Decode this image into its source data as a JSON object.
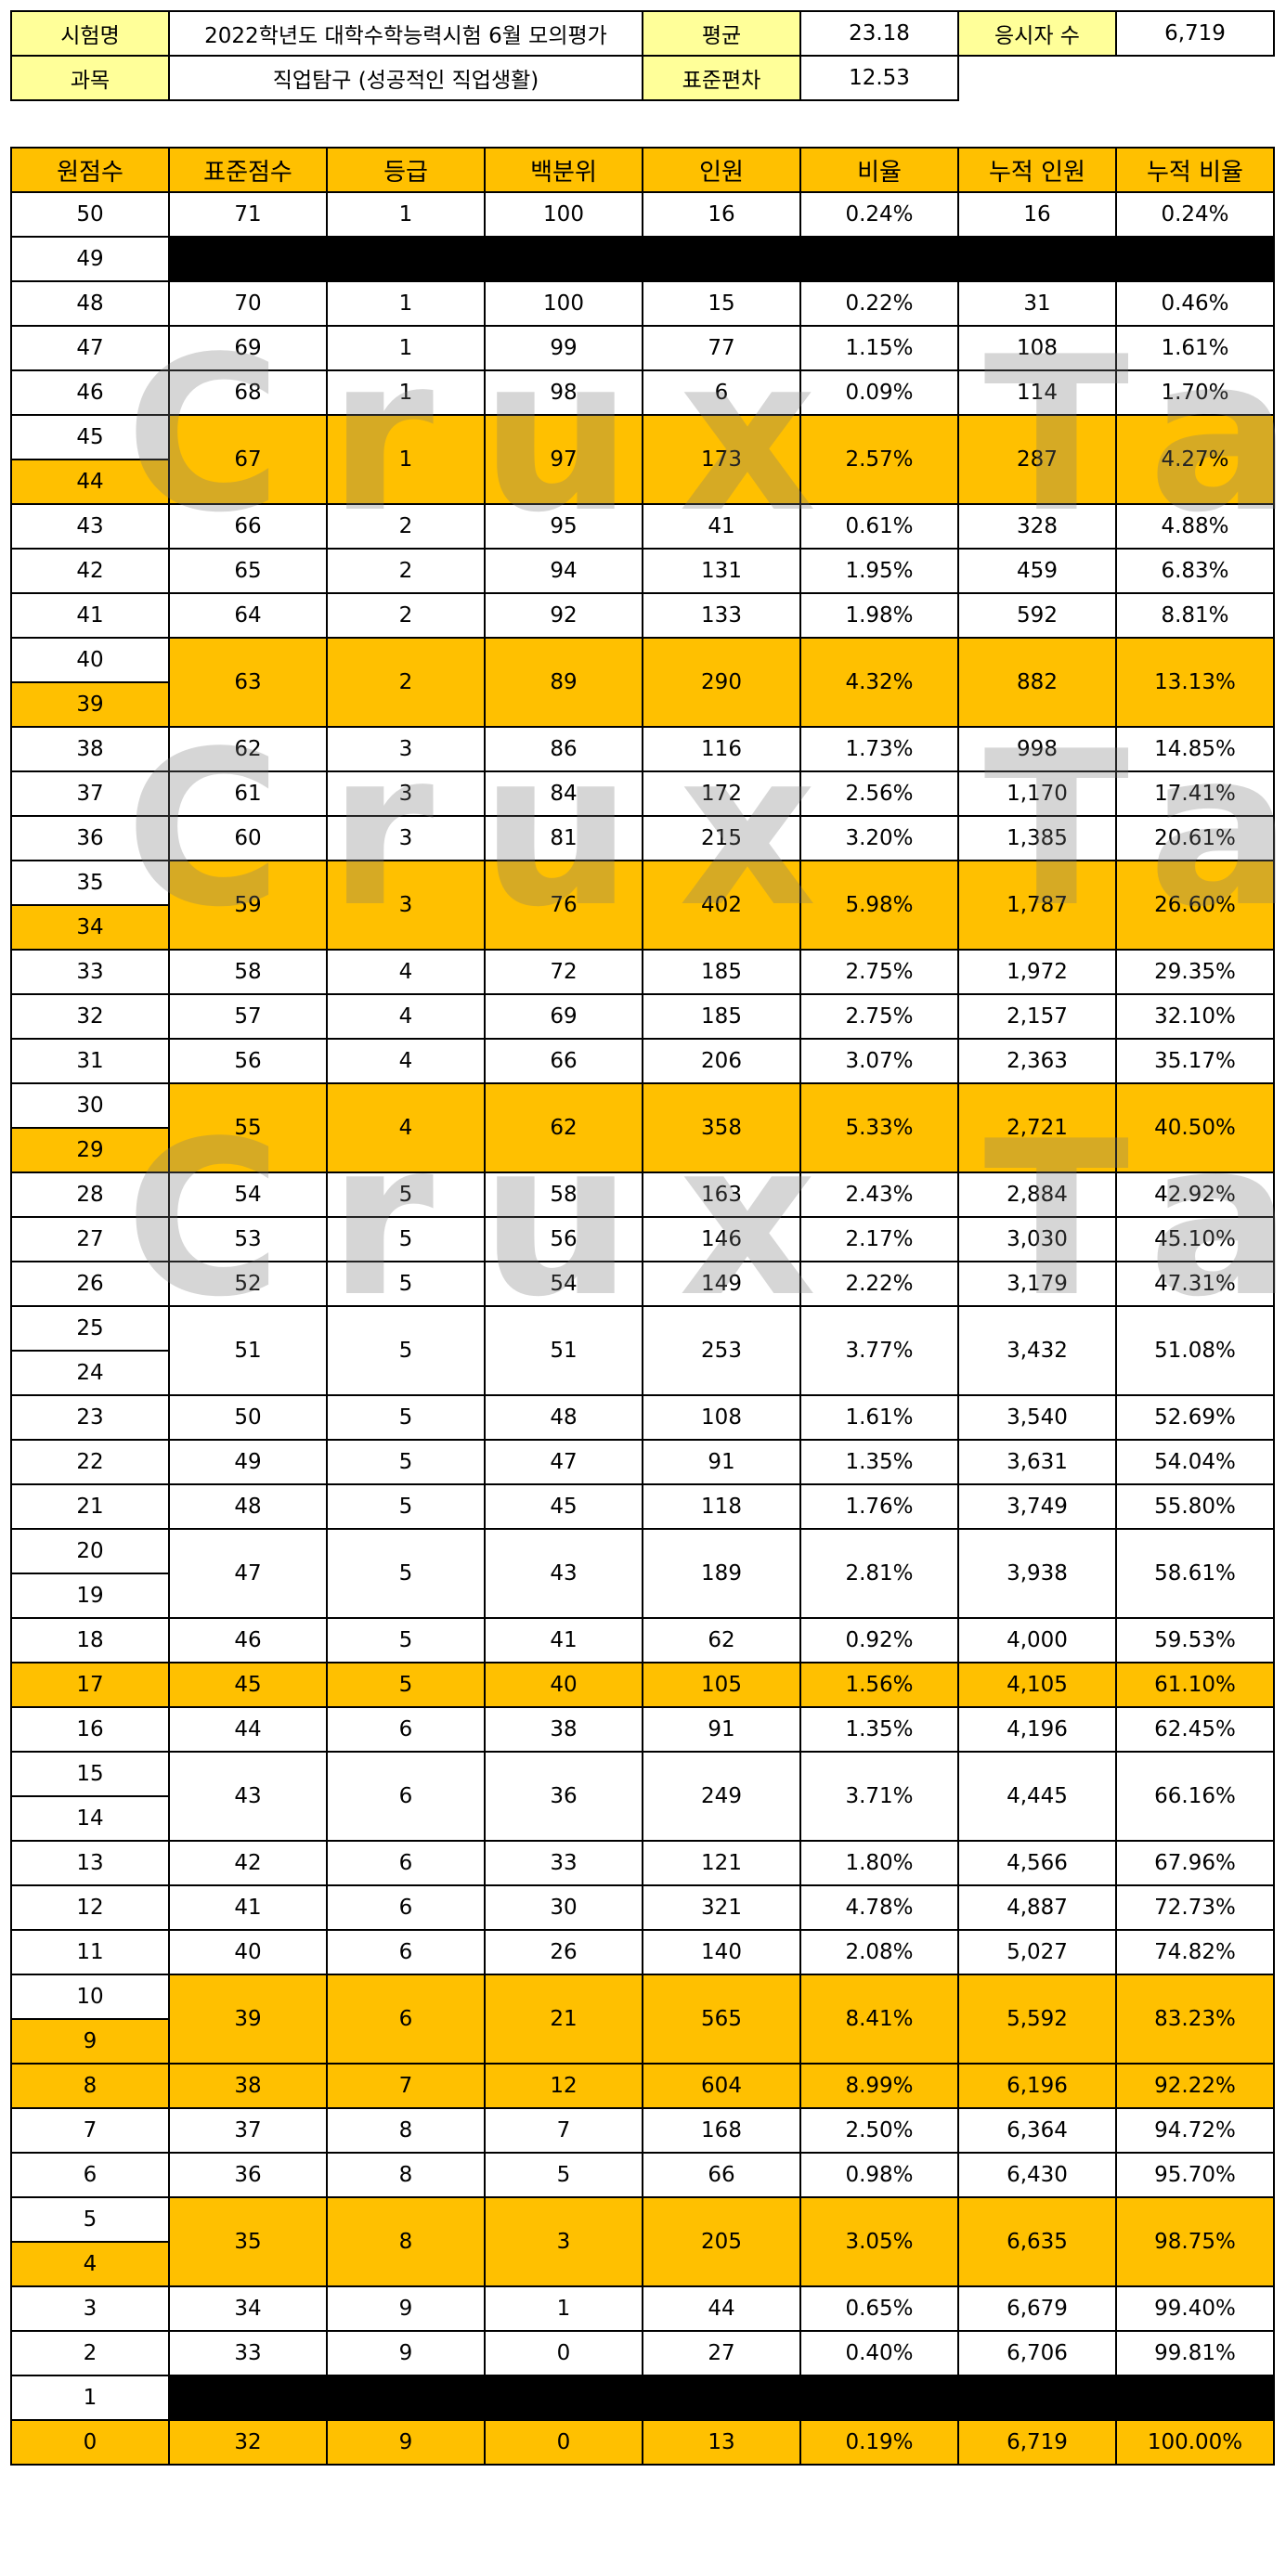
{
  "info": {
    "exam_label": "시험명",
    "exam_value": "2022학년도 대학수학능력시험 6월 모의평가",
    "subject_label": "과목",
    "subject_value": "직업탐구 (성공적인 직업생활)",
    "mean_label": "평균",
    "mean_value": "23.18",
    "sd_label": "표준편차",
    "sd_value": "12.53",
    "takers_label": "응시자 수",
    "takers_value": "6,719"
  },
  "columns": [
    "원점수",
    "표준점수",
    "등급",
    "백분위",
    "인원",
    "비율",
    "누적 인원",
    "누적 비율"
  ],
  "watermark": "Crux Table",
  "rows": [
    {
      "raw": "50",
      "std": "71",
      "grade": "1",
      "pct": "100",
      "count": "16",
      "ratio": "0.24%",
      "cum": "16",
      "cumratio": "0.24%"
    },
    {
      "raw": "49",
      "blank": true
    },
    {
      "raw": "48",
      "std": "70",
      "grade": "1",
      "pct": "100",
      "count": "15",
      "ratio": "0.22%",
      "cum": "31",
      "cumratio": "0.46%"
    },
    {
      "raw": "47",
      "std": "69",
      "grade": "1",
      "pct": "99",
      "count": "77",
      "ratio": "1.15%",
      "cum": "108",
      "cumratio": "1.61%"
    },
    {
      "raw": "46",
      "std": "68",
      "grade": "1",
      "pct": "98",
      "count": "6",
      "ratio": "0.09%",
      "cum": "114",
      "cumratio": "1.70%"
    },
    {
      "raw": "45",
      "span": 2,
      "hl": true,
      "std": "67",
      "grade": "1",
      "pct": "97",
      "count": "173",
      "ratio": "2.57%",
      "cum": "287",
      "cumratio": "4.27%"
    },
    {
      "raw": "44",
      "hlraw": true
    },
    {
      "raw": "43",
      "std": "66",
      "grade": "2",
      "pct": "95",
      "count": "41",
      "ratio": "0.61%",
      "cum": "328",
      "cumratio": "4.88%"
    },
    {
      "raw": "42",
      "std": "65",
      "grade": "2",
      "pct": "94",
      "count": "131",
      "ratio": "1.95%",
      "cum": "459",
      "cumratio": "6.83%"
    },
    {
      "raw": "41",
      "std": "64",
      "grade": "2",
      "pct": "92",
      "count": "133",
      "ratio": "1.98%",
      "cum": "592",
      "cumratio": "8.81%"
    },
    {
      "raw": "40",
      "span": 2,
      "hl": true,
      "std": "63",
      "grade": "2",
      "pct": "89",
      "count": "290",
      "ratio": "4.32%",
      "cum": "882",
      "cumratio": "13.13%"
    },
    {
      "raw": "39",
      "hlraw": true
    },
    {
      "raw": "38",
      "std": "62",
      "grade": "3",
      "pct": "86",
      "count": "116",
      "ratio": "1.73%",
      "cum": "998",
      "cumratio": "14.85%"
    },
    {
      "raw": "37",
      "std": "61",
      "grade": "3",
      "pct": "84",
      "count": "172",
      "ratio": "2.56%",
      "cum": "1,170",
      "cumratio": "17.41%"
    },
    {
      "raw": "36",
      "std": "60",
      "grade": "3",
      "pct": "81",
      "count": "215",
      "ratio": "3.20%",
      "cum": "1,385",
      "cumratio": "20.61%"
    },
    {
      "raw": "35",
      "span": 2,
      "hl": true,
      "std": "59",
      "grade": "3",
      "pct": "76",
      "count": "402",
      "ratio": "5.98%",
      "cum": "1,787",
      "cumratio": "26.60%"
    },
    {
      "raw": "34",
      "hlraw": true
    },
    {
      "raw": "33",
      "std": "58",
      "grade": "4",
      "pct": "72",
      "count": "185",
      "ratio": "2.75%",
      "cum": "1,972",
      "cumratio": "29.35%"
    },
    {
      "raw": "32",
      "std": "57",
      "grade": "4",
      "pct": "69",
      "count": "185",
      "ratio": "2.75%",
      "cum": "2,157",
      "cumratio": "32.10%"
    },
    {
      "raw": "31",
      "std": "56",
      "grade": "4",
      "pct": "66",
      "count": "206",
      "ratio": "3.07%",
      "cum": "2,363",
      "cumratio": "35.17%"
    },
    {
      "raw": "30",
      "span": 2,
      "hl": true,
      "std": "55",
      "grade": "4",
      "pct": "62",
      "count": "358",
      "ratio": "5.33%",
      "cum": "2,721",
      "cumratio": "40.50%"
    },
    {
      "raw": "29",
      "hlraw": true
    },
    {
      "raw": "28",
      "std": "54",
      "grade": "5",
      "pct": "58",
      "count": "163",
      "ratio": "2.43%",
      "cum": "2,884",
      "cumratio": "42.92%"
    },
    {
      "raw": "27",
      "std": "53",
      "grade": "5",
      "pct": "56",
      "count": "146",
      "ratio": "2.17%",
      "cum": "3,030",
      "cumratio": "45.10%"
    },
    {
      "raw": "26",
      "std": "52",
      "grade": "5",
      "pct": "54",
      "count": "149",
      "ratio": "2.22%",
      "cum": "3,179",
      "cumratio": "47.31%"
    },
    {
      "raw": "25",
      "span": 2,
      "std": "51",
      "grade": "5",
      "pct": "51",
      "count": "253",
      "ratio": "3.77%",
      "cum": "3,432",
      "cumratio": "51.08%"
    },
    {
      "raw": "24"
    },
    {
      "raw": "23",
      "std": "50",
      "grade": "5",
      "pct": "48",
      "count": "108",
      "ratio": "1.61%",
      "cum": "3,540",
      "cumratio": "52.69%"
    },
    {
      "raw": "22",
      "std": "49",
      "grade": "5",
      "pct": "47",
      "count": "91",
      "ratio": "1.35%",
      "cum": "3,631",
      "cumratio": "54.04%"
    },
    {
      "raw": "21",
      "std": "48",
      "grade": "5",
      "pct": "45",
      "count": "118",
      "ratio": "1.76%",
      "cum": "3,749",
      "cumratio": "55.80%"
    },
    {
      "raw": "20",
      "span": 2,
      "std": "47",
      "grade": "5",
      "pct": "43",
      "count": "189",
      "ratio": "2.81%",
      "cum": "3,938",
      "cumratio": "58.61%"
    },
    {
      "raw": "19"
    },
    {
      "raw": "18",
      "std": "46",
      "grade": "5",
      "pct": "41",
      "count": "62",
      "ratio": "0.92%",
      "cum": "4,000",
      "cumratio": "59.53%"
    },
    {
      "raw": "17",
      "hl": true,
      "hlraw": true,
      "std": "45",
      "grade": "5",
      "pct": "40",
      "count": "105",
      "ratio": "1.56%",
      "cum": "4,105",
      "cumratio": "61.10%"
    },
    {
      "raw": "16",
      "std": "44",
      "grade": "6",
      "pct": "38",
      "count": "91",
      "ratio": "1.35%",
      "cum": "4,196",
      "cumratio": "62.45%"
    },
    {
      "raw": "15",
      "span": 2,
      "std": "43",
      "grade": "6",
      "pct": "36",
      "count": "249",
      "ratio": "3.71%",
      "cum": "4,445",
      "cumratio": "66.16%"
    },
    {
      "raw": "14"
    },
    {
      "raw": "13",
      "std": "42",
      "grade": "6",
      "pct": "33",
      "count": "121",
      "ratio": "1.80%",
      "cum": "4,566",
      "cumratio": "67.96%"
    },
    {
      "raw": "12",
      "std": "41",
      "grade": "6",
      "pct": "30",
      "count": "321",
      "ratio": "4.78%",
      "cum": "4,887",
      "cumratio": "72.73%"
    },
    {
      "raw": "11",
      "std": "40",
      "grade": "6",
      "pct": "26",
      "count": "140",
      "ratio": "2.08%",
      "cum": "5,027",
      "cumratio": "74.82%"
    },
    {
      "raw": "10",
      "span": 2,
      "hl": true,
      "std": "39",
      "grade": "6",
      "pct": "21",
      "count": "565",
      "ratio": "8.41%",
      "cum": "5,592",
      "cumratio": "83.23%"
    },
    {
      "raw": "9",
      "hlraw": true
    },
    {
      "raw": "8",
      "hl": true,
      "hlraw": true,
      "std": "38",
      "grade": "7",
      "pct": "12",
      "count": "604",
      "ratio": "8.99%",
      "cum": "6,196",
      "cumratio": "92.22%"
    },
    {
      "raw": "7",
      "std": "37",
      "grade": "8",
      "pct": "7",
      "count": "168",
      "ratio": "2.50%",
      "cum": "6,364",
      "cumratio": "94.72%"
    },
    {
      "raw": "6",
      "std": "36",
      "grade": "8",
      "pct": "5",
      "count": "66",
      "ratio": "0.98%",
      "cum": "6,430",
      "cumratio": "95.70%"
    },
    {
      "raw": "5",
      "span": 2,
      "hl": true,
      "std": "35",
      "grade": "8",
      "pct": "3",
      "count": "205",
      "ratio": "3.05%",
      "cum": "6,635",
      "cumratio": "98.75%"
    },
    {
      "raw": "4",
      "hlraw": true
    },
    {
      "raw": "3",
      "std": "34",
      "grade": "9",
      "pct": "1",
      "count": "44",
      "ratio": "0.65%",
      "cum": "6,679",
      "cumratio": "99.40%"
    },
    {
      "raw": "2",
      "std": "33",
      "grade": "9",
      "pct": "0",
      "count": "27",
      "ratio": "0.40%",
      "cum": "6,706",
      "cumratio": "99.81%"
    },
    {
      "raw": "1",
      "blank": true
    },
    {
      "raw": "0",
      "hl": true,
      "hlraw": true,
      "std": "32",
      "grade": "9",
      "pct": "0",
      "count": "13",
      "ratio": "0.19%",
      "cum": "6,719",
      "cumratio": "100.00%"
    }
  ]
}
